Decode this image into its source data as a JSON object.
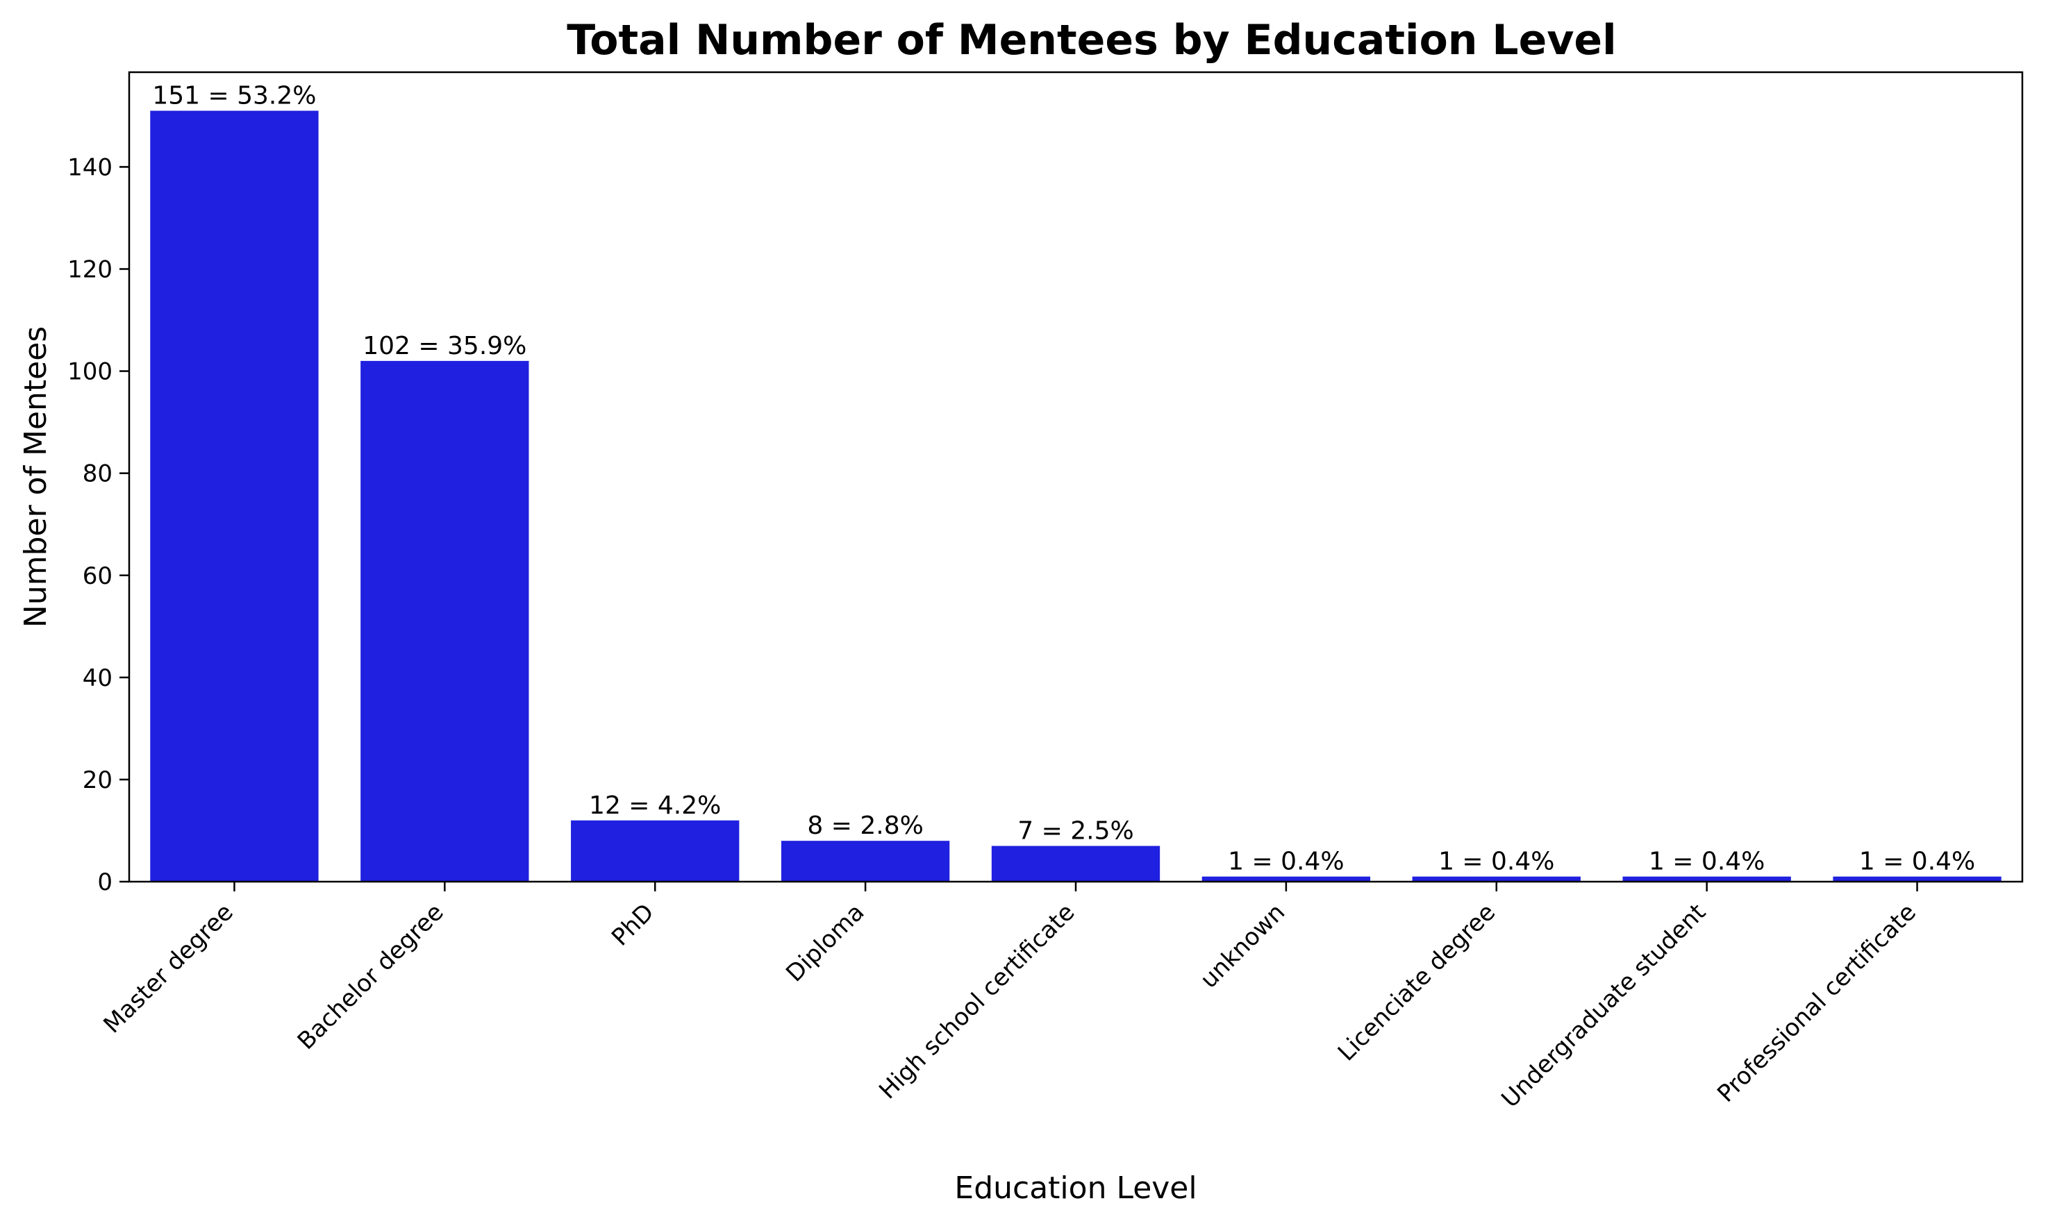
{
  "chart_data": {
    "type": "bar",
    "title": "Total Number of Mentees by Education Level",
    "xlabel": "Education Level",
    "ylabel": "Number of Mentees",
    "categories": [
      "Master degree",
      "Bachelor degree",
      "PhD",
      "Diploma",
      "High school certificate",
      "unknown",
      "Licenciate degree",
      "Undergraduate student",
      "Professional certificate"
    ],
    "values": [
      151,
      102,
      12,
      8,
      7,
      1,
      1,
      1,
      1
    ],
    "data_labels": [
      "151 = 53.2%",
      "102 = 35.9%",
      "12 = 4.2%",
      "8 = 2.8%",
      "7 = 2.5%",
      "1 = 0.4%",
      "1 = 0.4%",
      "1 = 0.4%",
      "1 = 0.4%"
    ],
    "yticks": [
      0,
      20,
      40,
      60,
      80,
      100,
      120,
      140
    ],
    "ylim": [
      0,
      158.55
    ],
    "bar_color": "#2020e0",
    "grid": false,
    "legend": "none"
  }
}
